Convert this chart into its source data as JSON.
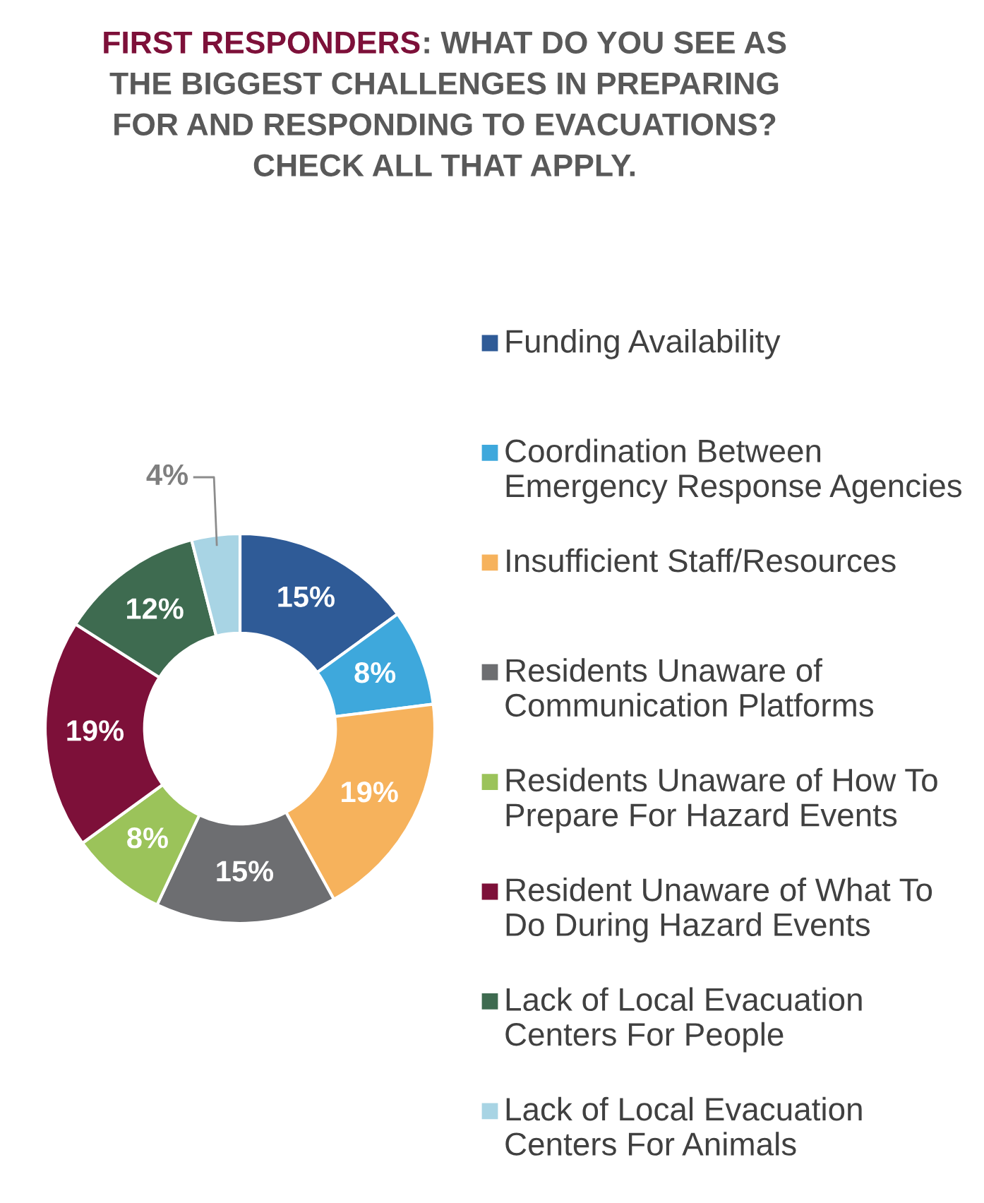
{
  "chart_data": {
    "type": "donut",
    "title": "FIRST RESPONDERS",
    "subtitle": ": WHAT DO YOU SEE AS THE BIGGEST CHALLENGES IN PREPARING FOR AND RESPONDING TO EVACUATIONS? CHECK ALL THAT APPLY.",
    "categories": [
      "Funding Availability",
      "Coordination Between Emergency Response Agencies",
      "Insufficient Staff/Resources",
      "Residents Unaware of Communication Platforms",
      "Residents Unaware of How To Prepare For Hazard Events",
      "Resident Unaware of What To Do During Hazard Events",
      "Lack of Local Evacuation Centers For People",
      "Lack of Local Evacuation Centers For Animals"
    ],
    "values": [
      15,
      8,
      19,
      15,
      8,
      19,
      12,
      4
    ],
    "value_labels": [
      "15%",
      "8%",
      "19%",
      "15%",
      "8%",
      "19%",
      "12%",
      "4%"
    ],
    "colors": [
      "#2f5b97",
      "#3ea8dc",
      "#f6b25c",
      "#6d6e71",
      "#9bc35a",
      "#7d1039",
      "#3e6b50",
      "#a8d4e4"
    ],
    "legend": "right"
  }
}
